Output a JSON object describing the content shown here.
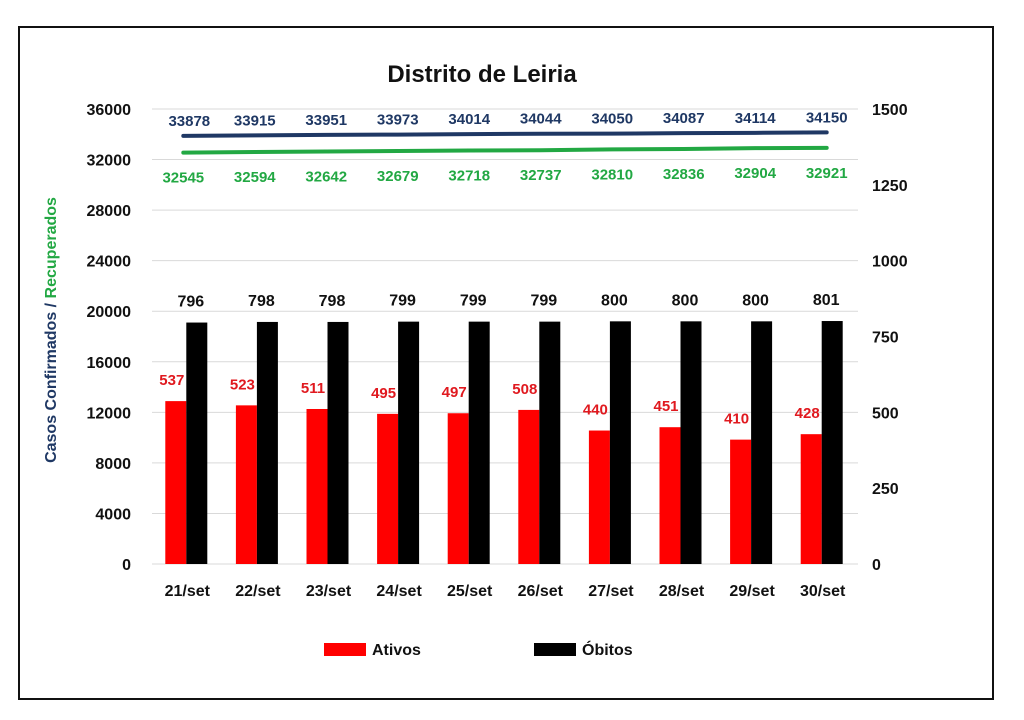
{
  "chart_data": {
    "type": "bar",
    "title": "Distrito de Leiria",
    "ylabel_parts": [
      {
        "text": "Casos Confirmados",
        "color": "#1f3864"
      },
      {
        "text": " / ",
        "color": "#1f3864"
      },
      {
        "text": "Recuperados",
        "color": "#22a843"
      }
    ],
    "categories": [
      "21/set",
      "22/set",
      "23/set",
      "24/set",
      "25/set",
      "26/set",
      "27/set",
      "28/set",
      "29/set",
      "30/set"
    ],
    "y_left": {
      "min": 0,
      "max": 36000,
      "ticks": [
        0,
        4000,
        8000,
        12000,
        16000,
        20000,
        24000,
        28000,
        32000,
        36000
      ]
    },
    "y_right": {
      "min": 0,
      "max": 1500,
      "ticks": [
        0,
        250,
        500,
        750,
        1000,
        1250,
        1500
      ]
    },
    "grid": true,
    "series": [
      {
        "name": "Ativos",
        "type": "bar",
        "axis": "right",
        "color": "#ff0000",
        "values": [
          537,
          523,
          511,
          495,
          497,
          508,
          440,
          451,
          410,
          428
        ]
      },
      {
        "name": "Óbitos",
        "type": "bar",
        "axis": "right",
        "color": "#000000",
        "values": [
          796,
          798,
          798,
          799,
          799,
          799,
          800,
          800,
          800,
          801
        ]
      },
      {
        "type": "line",
        "axis": "left",
        "color": "#1f3864",
        "values": [
          33878,
          33915,
          33951,
          33973,
          34014,
          34044,
          34050,
          34087,
          34114,
          34150
        ]
      },
      {
        "type": "line",
        "axis": "left",
        "color": "#22a843",
        "values": [
          32545,
          32594,
          32642,
          32679,
          32718,
          32737,
          32810,
          32836,
          32904,
          32921
        ]
      }
    ],
    "legend": {
      "placement": "bottom",
      "items": [
        "Ativos",
        "Óbitos"
      ]
    }
  }
}
